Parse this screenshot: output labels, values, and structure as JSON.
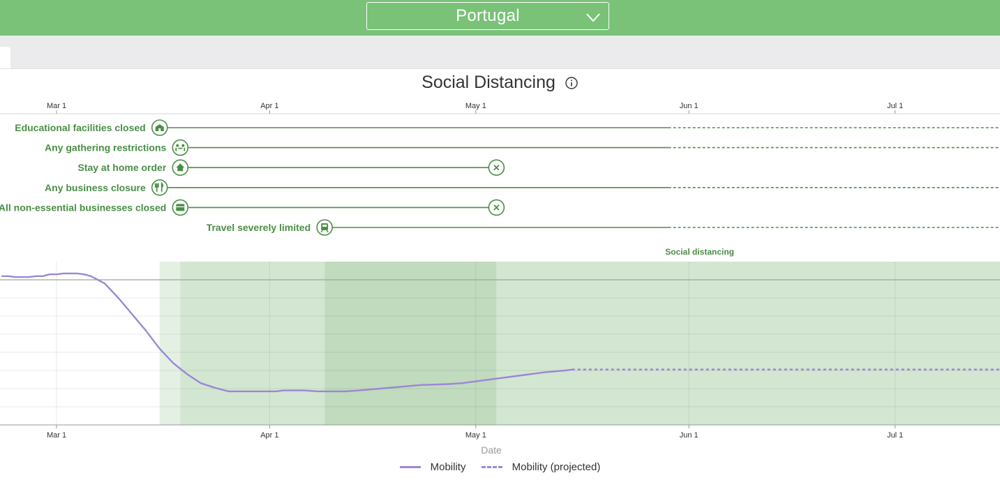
{
  "header": {
    "country": "Portugal"
  },
  "page_title": "Social Distancing",
  "colors": {
    "header_green": "#79c278",
    "mandate_green": "#4a8e46",
    "mobility": "#9b87d6",
    "band_light": "#e5f0e4",
    "band_mid": "#d3e6d1",
    "band_dark": "#c0dbbd"
  },
  "chart_data": {
    "type": "line",
    "title": "Social Distancing",
    "xlabel": "Date",
    "ylabel": "",
    "x_ticks": [
      "Mar 1",
      "Apr 1",
      "May 1",
      "Jun 1",
      "Jul 1"
    ],
    "x_range": [
      "2020-02-22",
      "2020-07-17"
    ],
    "projection_start": "2020-05-29",
    "band_label": "Social distancing",
    "grid": true,
    "legend_position": "bottom",
    "mandates": [
      {
        "name": "Educational facilities closed",
        "icon": "school-icon",
        "start": "2020-03-16",
        "end": null,
        "ended": false
      },
      {
        "name": "Any gathering restrictions",
        "icon": "gathering-icon",
        "start": "2020-03-19",
        "end": null,
        "ended": false
      },
      {
        "name": "Stay at home order",
        "icon": "home-icon",
        "start": "2020-03-19",
        "end": "2020-05-04",
        "ended": true
      },
      {
        "name": "Any business closure",
        "icon": "restaurant-icon",
        "start": "2020-03-16",
        "end": null,
        "ended": false
      },
      {
        "name": "All non-essential businesses closed",
        "icon": "store-icon",
        "start": "2020-03-19",
        "end": "2020-05-04",
        "ended": true
      },
      {
        "name": "Travel severely limited",
        "icon": "train-icon",
        "start": "2020-04-09",
        "end": null,
        "ended": false
      }
    ],
    "series": [
      {
        "name": "Mobility",
        "style": "solid",
        "points": [
          [
            "2020-02-22",
            2.0
          ],
          [
            "2020-02-23",
            2.0
          ],
          [
            "2020-02-24",
            1.5
          ],
          [
            "2020-02-25",
            1.5
          ],
          [
            "2020-02-26",
            1.5
          ],
          [
            "2020-02-27",
            2.0
          ],
          [
            "2020-02-28",
            2.0
          ],
          [
            "2020-02-29",
            3.0
          ],
          [
            "2020-03-01",
            3.0
          ],
          [
            "2020-03-02",
            3.5
          ],
          [
            "2020-03-03",
            3.5
          ],
          [
            "2020-03-04",
            3.5
          ],
          [
            "2020-03-05",
            3.0
          ],
          [
            "2020-03-06",
            2.0
          ],
          [
            "2020-03-08",
            -2.0
          ],
          [
            "2020-03-10",
            -10.0
          ],
          [
            "2020-03-12",
            -19.0
          ],
          [
            "2020-03-14",
            -28.0
          ],
          [
            "2020-03-16",
            -38.0
          ],
          [
            "2020-03-18",
            -46.0
          ],
          [
            "2020-03-20",
            -52.0
          ],
          [
            "2020-03-22",
            -57.0
          ],
          [
            "2020-03-24",
            -59.5
          ],
          [
            "2020-03-26",
            -61.5
          ],
          [
            "2020-03-28",
            -61.5
          ],
          [
            "2020-03-31",
            -61.5
          ],
          [
            "2020-04-02",
            -61.5
          ],
          [
            "2020-04-03",
            -61.0
          ],
          [
            "2020-04-06",
            -61.0
          ],
          [
            "2020-04-08",
            -61.5
          ],
          [
            "2020-04-12",
            -61.5
          ],
          [
            "2020-04-14",
            -61.0
          ],
          [
            "2020-04-17",
            -60.0
          ],
          [
            "2020-04-20",
            -59.0
          ],
          [
            "2020-04-23",
            -58.0
          ],
          [
            "2020-04-27",
            -57.5
          ],
          [
            "2020-04-29",
            -57.0
          ],
          [
            "2020-05-01",
            -56.0
          ],
          [
            "2020-05-04",
            -54.5
          ],
          [
            "2020-05-08",
            -52.5
          ],
          [
            "2020-05-11",
            -51.0
          ],
          [
            "2020-05-14",
            -50.0
          ],
          [
            "2020-05-15",
            -49.5
          ]
        ]
      },
      {
        "name": "Mobility (projected)",
        "style": "dashed",
        "points": [
          [
            "2020-05-15",
            -49.5
          ],
          [
            "2020-07-17",
            -49.5
          ]
        ]
      }
    ]
  },
  "icons": {
    "info": "info-icon",
    "close": "close-circle-icon",
    "dropdown": "chevron-down-icon"
  }
}
